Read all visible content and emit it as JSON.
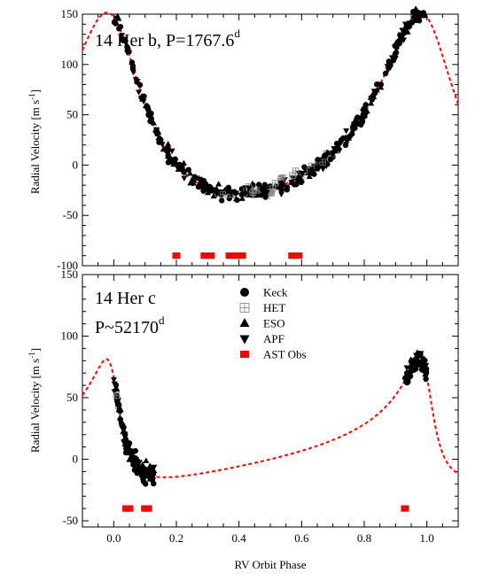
{
  "xlabel": "RV Orbit Phase",
  "x_ticks": [
    "0.0",
    "0.2",
    "0.4",
    "0.6",
    "0.8",
    "1.0"
  ],
  "legend": [
    {
      "name": "Keck",
      "marker": "circle",
      "color": "#000000"
    },
    {
      "name": "HET",
      "marker": "open-square-cross",
      "color": "#808080"
    },
    {
      "name": "ESO",
      "marker": "triangle-up",
      "color": "#000000"
    },
    {
      "name": "APF",
      "marker": "triangle-down",
      "color": "#000000"
    },
    {
      "name": "AST Obs",
      "marker": "square",
      "color": "#ff0000"
    }
  ],
  "colors": {
    "model": "#ff0000",
    "ast": "#ff0000",
    "marker": "#000000",
    "het": "#808080"
  },
  "chart_data": [
    {
      "type": "scatter",
      "panel": "top",
      "title": "14 Her b, P=1767.6",
      "title_superscript": "d",
      "ylabel": "Radial Velocity [m s-1]",
      "ylabel_main": "Radial Velocity [m s",
      "ylabel_sup": "-1",
      "ylabel_end": "]",
      "xlim": [
        -0.1,
        1.1
      ],
      "ylim": [
        -100,
        150
      ],
      "y_ticks": [
        "150",
        "100",
        "50",
        "0",
        "-50",
        "-100"
      ],
      "model": {
        "type": "keplerian",
        "K": 90,
        "e": 0.37,
        "omega_deg": 18.2,
        "offset": 30,
        "period": 1767.6
      },
      "ast_obs_phase": [
        0.2,
        0.29,
        0.31,
        0.37,
        0.39,
        0.41,
        0.57,
        0.59
      ],
      "ast_obs_y": -90
    },
    {
      "type": "scatter",
      "panel": "bottom",
      "title": "14 Her c",
      "subtitle": "P~52170",
      "subtitle_superscript": "d",
      "ylabel": "Radial Velocity [m s-1]",
      "ylabel_main": "Radial Velocity [m s",
      "ylabel_sup": "-1",
      "ylabel_end": "]",
      "xlim": [
        -0.1,
        1.1
      ],
      "ylim": [
        -55,
        150
      ],
      "y_ticks": [
        "150",
        "100",
        "50",
        "0",
        "-50"
      ],
      "model": {
        "type": "keplerian",
        "K": 48,
        "e": 0.64,
        "omega_deg": 46,
        "offset": 12,
        "period": 52170
      },
      "data_phase_ranges": [
        [
          0.0,
          0.13
        ],
        [
          0.93,
          1.0
        ]
      ],
      "ast_obs_phase": [
        0.04,
        0.05,
        0.1,
        0.11,
        0.93
      ],
      "ast_obs_y": -40
    }
  ]
}
